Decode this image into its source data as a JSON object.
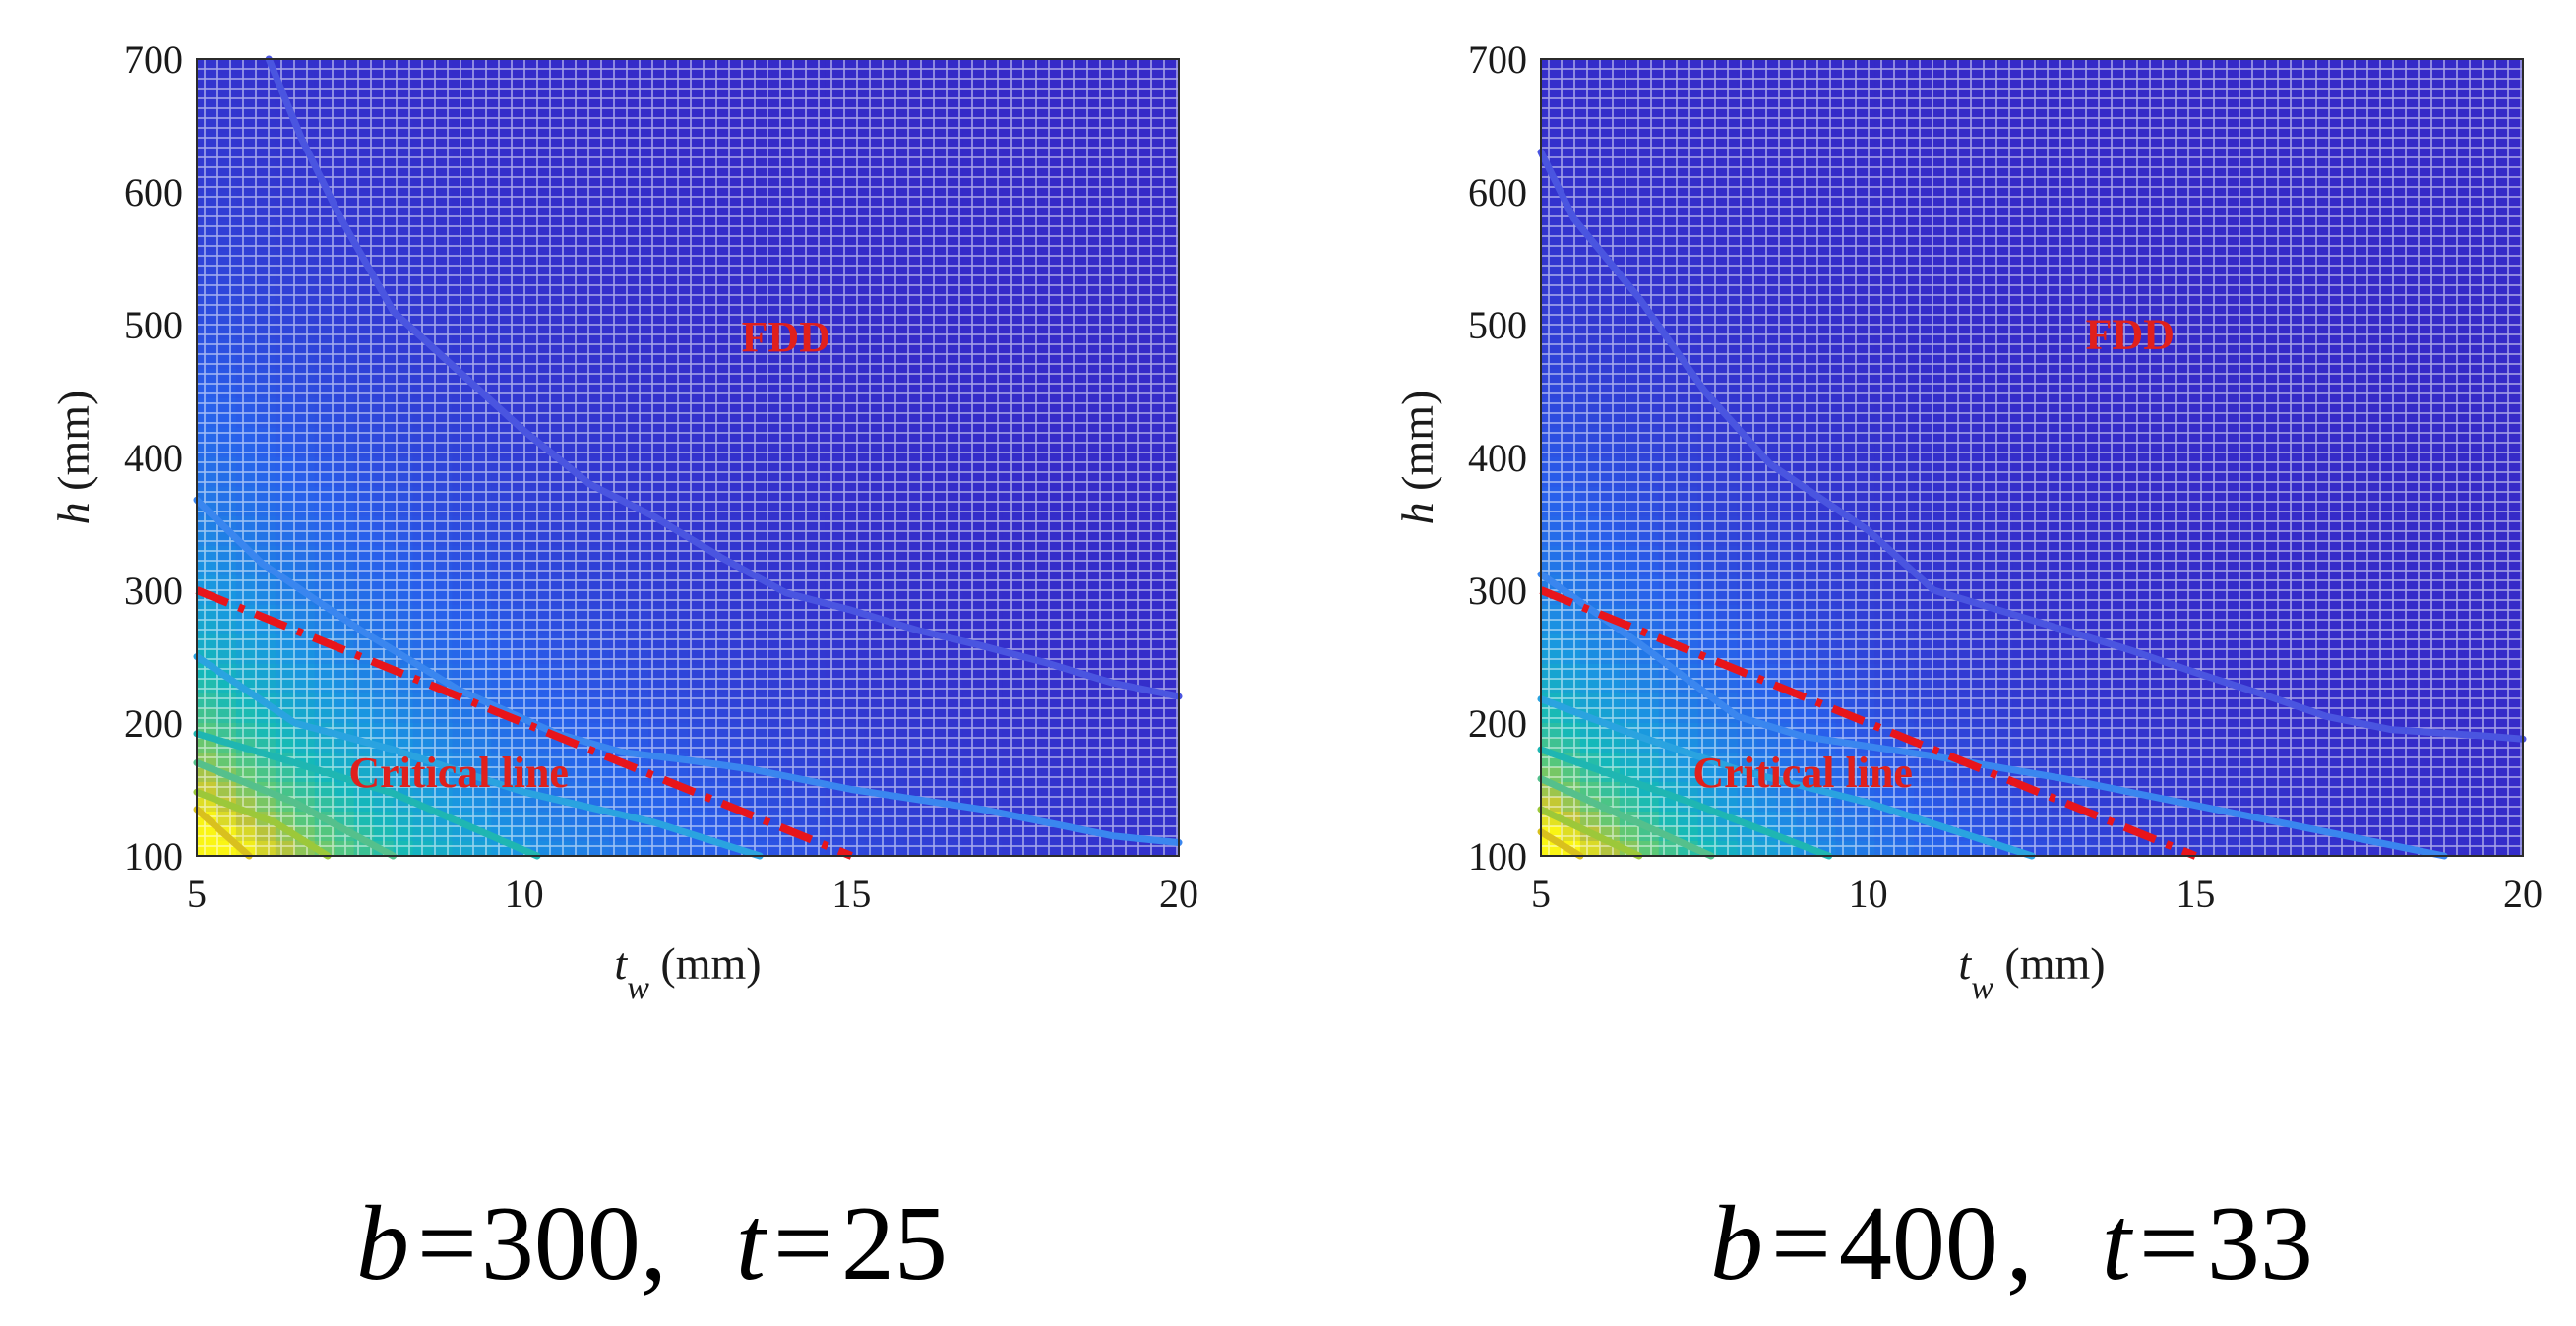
{
  "chart_data": [
    {
      "type": "contour",
      "xlabel": {
        "symbol": "t",
        "sub": "w",
        "unit": " (mm)"
      },
      "ylabel": {
        "symbol": "h",
        "unit": " (mm)"
      },
      "xlim": [
        5,
        20
      ],
      "ylim": [
        100,
        700
      ],
      "xticks": [
        "5",
        "10",
        "15",
        "20"
      ],
      "yticks": [
        "100",
        "200",
        "300",
        "400",
        "500",
        "600",
        "700"
      ],
      "region_label": "FDD",
      "region_label_at": [
        14,
        480
      ],
      "critical_label": "Critical line",
      "critical_label_at": [
        9,
        152
      ],
      "critical_line": [
        [
          5,
          300
        ],
        [
          15,
          100
        ]
      ],
      "surface": {
        "min_corner": [
          5,
          100
        ],
        "falloff": [
          3.5,
          150
        ]
      },
      "contours": [
        {
          "color": "#d9c01e",
          "points": [
            [
              5,
              135
            ],
            [
              5.8,
              100
            ]
          ]
        },
        {
          "color": "#9cc83a",
          "points": [
            [
              5,
              148
            ],
            [
              6.2,
              125
            ],
            [
              7,
              100
            ]
          ]
        },
        {
          "color": "#55c08c",
          "points": [
            [
              5,
              170
            ],
            [
              6.5,
              140
            ],
            [
              8,
              100
            ]
          ]
        },
        {
          "color": "#1fb6b2",
          "points": [
            [
              5,
              192
            ],
            [
              6.5,
              170
            ],
            [
              8,
              147
            ],
            [
              10.2,
              100
            ]
          ]
        },
        {
          "color": "#2aa3e0",
          "points": [
            [
              5,
              250
            ],
            [
              6.5,
              200
            ],
            [
              8,
              180
            ],
            [
              10,
              148
            ],
            [
              12,
              125
            ],
            [
              13.6,
              100
            ]
          ]
        },
        {
          "color": "#3a86ef",
          "points": [
            [
              5,
              368
            ],
            [
              6,
              320
            ],
            [
              7.5,
              270
            ],
            [
              9,
              225
            ],
            [
              10.5,
              192
            ],
            [
              11.5,
              178
            ],
            [
              12.5,
              172
            ],
            [
              13.5,
              165
            ],
            [
              15,
              150
            ],
            [
              17,
              135
            ],
            [
              19,
              115
            ],
            [
              20,
              110
            ]
          ]
        },
        {
          "color": "#4a55e0",
          "points": [
            [
              6.1,
              700
            ],
            [
              6.6,
              640
            ],
            [
              7.2,
              580
            ],
            [
              8,
              510
            ],
            [
              9,
              465
            ],
            [
              10,
              420
            ],
            [
              11,
              380
            ],
            [
              12,
              355
            ],
            [
              13,
              325
            ],
            [
              14,
              298
            ],
            [
              15,
              285
            ],
            [
              16,
              270
            ],
            [
              17,
              258
            ],
            [
              18,
              245
            ],
            [
              19,
              230
            ],
            [
              20,
              220
            ]
          ]
        }
      ]
    },
    {
      "type": "contour",
      "xlabel": {
        "symbol": "t",
        "sub": "w",
        "unit": " (mm)"
      },
      "ylabel": {
        "symbol": "h",
        "unit": " (mm)"
      },
      "xlim": [
        5,
        20
      ],
      "ylim": [
        100,
        700
      ],
      "xticks": [
        "5",
        "10",
        "15",
        "20"
      ],
      "yticks": [
        "100",
        "200",
        "300",
        "400",
        "500",
        "600",
        "700"
      ],
      "region_label": "FDD",
      "region_label_at": [
        14,
        482
      ],
      "critical_label": "Critical line",
      "critical_label_at": [
        9,
        152
      ],
      "critical_line": [
        [
          5,
          300
        ],
        [
          15,
          100
        ]
      ],
      "surface": {
        "min_corner": [
          5,
          100
        ],
        "falloff": [
          2.8,
          120
        ]
      },
      "contours": [
        {
          "color": "#d9c01e",
          "points": [
            [
              5,
              118
            ],
            [
              5.6,
              100
            ]
          ]
        },
        {
          "color": "#9cc83a",
          "points": [
            [
              5,
              135
            ],
            [
              6.5,
              100
            ]
          ]
        },
        {
          "color": "#55c08c",
          "points": [
            [
              5,
              158
            ],
            [
              7.6,
              100
            ]
          ]
        },
        {
          "color": "#1fb6b2",
          "points": [
            [
              5,
              180
            ],
            [
              7.3,
              140
            ],
            [
              9.4,
              100
            ]
          ]
        },
        {
          "color": "#2aa3e0",
          "points": [
            [
              5,
              218
            ],
            [
              6.5,
              190
            ],
            [
              8,
              165
            ],
            [
              10,
              140
            ],
            [
              12.5,
              100
            ]
          ]
        },
        {
          "color": "#3a86ef",
          "points": [
            [
              5,
              312
            ],
            [
              6.5,
              260
            ],
            [
              8,
              205
            ],
            [
              9,
              190
            ],
            [
              11,
              175
            ],
            [
              13,
              158
            ],
            [
              15,
              138
            ],
            [
              17,
              118
            ],
            [
              18.8,
              100
            ]
          ]
        },
        {
          "color": "#4a55e0",
          "points": [
            [
              5,
              630
            ],
            [
              5.5,
              580
            ],
            [
              6.5,
              520
            ],
            [
              7.5,
              450
            ],
            [
              8.5,
              395
            ],
            [
              10,
              345
            ],
            [
              11,
              300
            ],
            [
              12,
              285
            ],
            [
              13,
              270
            ],
            [
              14,
              255
            ],
            [
              15,
              238
            ],
            [
              16,
              222
            ],
            [
              17,
              205
            ],
            [
              18,
              195
            ],
            [
              19.5,
              190
            ],
            [
              20,
              188
            ]
          ]
        }
      ]
    }
  ],
  "captions": [
    {
      "b_symbol": "b",
      "eq": "=",
      "b_value": "300",
      "sep": ",",
      "t_symbol": "t",
      "t_value": "25"
    },
    {
      "b_symbol": "b",
      "eq": "=",
      "b_value": "400",
      "sep": ",",
      "t_symbol": "t",
      "t_value": "33"
    }
  ]
}
